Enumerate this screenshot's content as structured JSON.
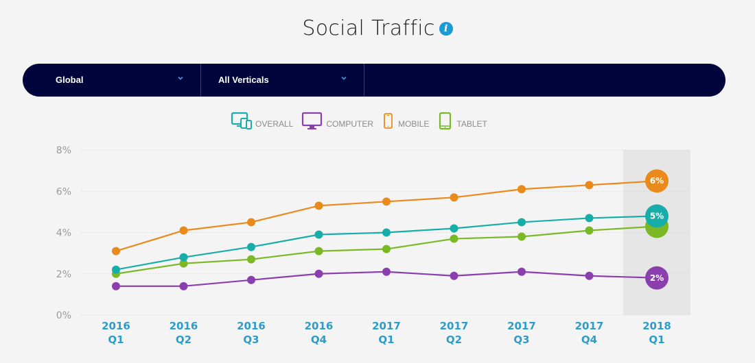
{
  "header": {
    "title": "Social Traffic",
    "info_icon": "info-icon"
  },
  "filters": [
    {
      "label": "Global",
      "icon": "chevron-down-icon"
    },
    {
      "label": "All Verticals",
      "icon": "chevron-down-icon"
    }
  ],
  "legend": [
    {
      "label": "OVERALL",
      "icon": "devices-icon",
      "color": "#17aeaa"
    },
    {
      "label": "COMPUTER",
      "icon": "monitor-icon",
      "color": "#8b3fae"
    },
    {
      "label": "MOBILE",
      "icon": "smartphone-icon",
      "color": "#ea8a1b"
    },
    {
      "label": "TABLET",
      "icon": "tablet-icon",
      "color": "#7ab826"
    }
  ],
  "chart_data": {
    "type": "line",
    "title": "Social Traffic",
    "categories": [
      [
        "2016",
        "Q1"
      ],
      [
        "2016",
        "Q2"
      ],
      [
        "2016",
        "Q3"
      ],
      [
        "2016",
        "Q4"
      ],
      [
        "2017",
        "Q1"
      ],
      [
        "2017",
        "Q2"
      ],
      [
        "2017",
        "Q3"
      ],
      [
        "2017",
        "Q4"
      ],
      [
        "2018",
        "Q1"
      ]
    ],
    "ylim": [
      0,
      8
    ],
    "yticks": [
      0,
      2,
      4,
      6,
      8
    ],
    "ytick_labels": [
      "0%",
      "2%",
      "4%",
      "6%",
      "8%"
    ],
    "grid": true,
    "highlighted_category_index": 8,
    "series": [
      {
        "name": "MOBILE",
        "color": "#ea8a1b",
        "values": [
          3.1,
          4.1,
          4.5,
          5.3,
          5.5,
          5.7,
          6.1,
          6.3,
          6.5
        ],
        "end_label": "6%"
      },
      {
        "name": "TABLET",
        "color": "#7ab826",
        "values": [
          2.0,
          2.5,
          2.7,
          3.1,
          3.2,
          3.7,
          3.8,
          4.1,
          4.3
        ],
        "end_label": ""
      },
      {
        "name": "OVERALL",
        "color": "#17aeaa",
        "values": [
          2.2,
          2.8,
          3.3,
          3.9,
          4.0,
          4.2,
          4.5,
          4.7,
          4.8
        ],
        "end_label": "5%"
      },
      {
        "name": "COMPUTER",
        "color": "#8b3fae",
        "values": [
          1.4,
          1.4,
          1.7,
          2.0,
          2.1,
          1.9,
          2.1,
          1.9,
          1.8
        ],
        "end_label": "2%"
      }
    ],
    "colors": {
      "axis_label": "#9a9a9a",
      "x_label": "#2e9cc8",
      "grid": "#c9c9c9",
      "highlight_band": "#e6e6e6"
    }
  }
}
